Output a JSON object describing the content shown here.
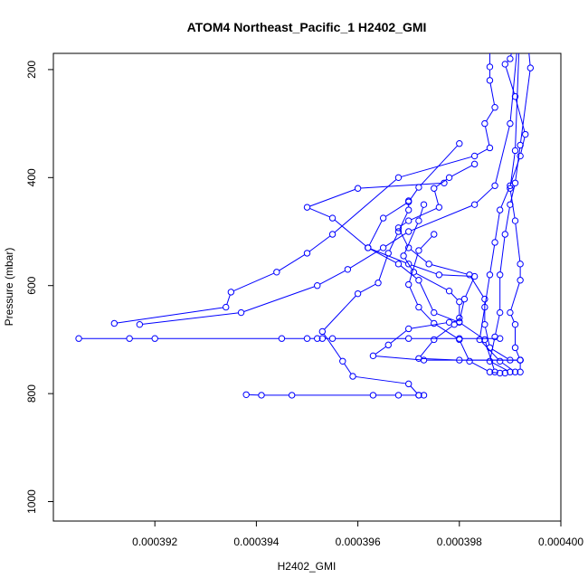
{
  "chart_data": {
    "type": "line",
    "title": "ATOM4 Northeast_Pacific_1 H2402_GMI",
    "xlabel": "H2402_GMI",
    "ylabel": "Pressure (mbar)",
    "xlim": [
      0.00039,
      0.0004
    ],
    "ylim": [
      1036,
      170
    ],
    "y_axis_reversed": true,
    "x_ticks": [
      "0.000392",
      "0.000394",
      "0.000396",
      "0.000398",
      "0.000400"
    ],
    "y_ticks": [
      "200",
      "400",
      "600",
      "800",
      "1000"
    ],
    "x_tick_values": [
      0.000392,
      0.000394,
      0.000396,
      0.000398,
      0.0004
    ],
    "y_tick_values": [
      200,
      400,
      600,
      800,
      1000
    ],
    "grid": false,
    "color": "#0000ff",
    "marker": "open-circle",
    "series": [
      {
        "name": "",
        "points": [
          [
            0.0003992,
            100
          ],
          [
            0.000399,
            180
          ],
          [
            0.0003989,
            190
          ],
          [
            0.0003991,
            250
          ],
          [
            0.0003993,
            320
          ],
          [
            0.0003992,
            360
          ],
          [
            0.000399,
            415
          ],
          [
            0.0003988,
            460
          ],
          [
            0.0003987,
            520
          ],
          [
            0.0003986,
            580
          ],
          [
            0.0003985,
            640
          ],
          [
            0.0003984,
            700
          ],
          [
            0.0003988,
            740
          ],
          [
            0.0003991,
            760
          ]
        ]
      },
      {
        "name": "",
        "points": [
          [
            0.0003986,
            100
          ],
          [
            0.0003986,
            195
          ],
          [
            0.0003986,
            220
          ],
          [
            0.0003987,
            270
          ],
          [
            0.0003985,
            300
          ],
          [
            0.0003986,
            345
          ],
          [
            0.0003983,
            360
          ],
          [
            0.0003968,
            400
          ],
          [
            0.0003955,
            505
          ],
          [
            0.000395,
            540
          ],
          [
            0.0003944,
            575
          ],
          [
            0.0003935,
            612
          ],
          [
            0.0003934,
            640
          ],
          [
            0.0003912,
            670
          ]
        ]
      },
      {
        "name": "",
        "points": [
          [
            0.0003993,
            100
          ],
          [
            0.0003994,
            197
          ],
          [
            0.0003992,
            340
          ],
          [
            0.0003991,
            410
          ],
          [
            0.000399,
            450
          ],
          [
            0.0003989,
            505
          ],
          [
            0.0003988,
            580
          ],
          [
            0.0003988,
            650
          ],
          [
            0.0003987,
            695
          ],
          [
            0.0003986,
            740
          ],
          [
            0.000399,
            760
          ]
        ]
      },
      {
        "name": "",
        "points": [
          [
            0.0003992,
            100
          ],
          [
            0.000399,
            300
          ],
          [
            0.0003987,
            415
          ],
          [
            0.0003983,
            450
          ],
          [
            0.000397,
            500
          ],
          [
            0.0003965,
            530
          ],
          [
            0.0003958,
            570
          ],
          [
            0.0003952,
            600
          ],
          [
            0.0003937,
            650
          ],
          [
            0.0003917,
            672
          ]
        ]
      },
      {
        "name": "",
        "points": [
          [
            0.0003905,
            698
          ],
          [
            0.0003915,
            698
          ],
          [
            0.000392,
            698
          ],
          [
            0.0003945,
            698
          ],
          [
            0.000395,
            698
          ],
          [
            0.0003952,
            698
          ],
          [
            0.0003953,
            698
          ],
          [
            0.0003955,
            698
          ],
          [
            0.000397,
            698
          ],
          [
            0.000398,
            698
          ],
          [
            0.0003988,
            698
          ]
        ]
      },
      {
        "name": "",
        "points": [
          [
            0.0003938,
            802
          ],
          [
            0.0003941,
            803
          ],
          [
            0.0003947,
            803
          ],
          [
            0.0003963,
            803
          ],
          [
            0.0003968,
            803
          ],
          [
            0.0003972,
            803
          ],
          [
            0.0003973,
            803
          ]
        ]
      },
      {
        "name": "",
        "points": [
          [
            0.000397,
            443
          ],
          [
            0.000397,
            460
          ],
          [
            0.0003968,
            500
          ],
          [
            0.0003966,
            540
          ],
          [
            0.0003964,
            595
          ],
          [
            0.000396,
            615
          ],
          [
            0.0003953,
            685
          ],
          [
            0.0003957,
            740
          ],
          [
            0.0003959,
            768
          ],
          [
            0.000397,
            782
          ],
          [
            0.0003972,
            803
          ]
        ]
      },
      {
        "name": "",
        "points": [
          [
            0.000398,
            337
          ],
          [
            0.0003972,
            418
          ],
          [
            0.000397,
            445
          ],
          [
            0.0003965,
            475
          ],
          [
            0.0003962,
            530
          ],
          [
            0.0003968,
            560
          ],
          [
            0.0003972,
            590
          ],
          [
            0.0003975,
            650
          ],
          [
            0.000398,
            668
          ],
          [
            0.0003985,
            700
          ],
          [
            0.0003987,
            760
          ]
        ]
      },
      {
        "name": "",
        "points": [
          [
            0.0003975,
            505
          ],
          [
            0.0003972,
            535
          ],
          [
            0.000397,
            598
          ],
          [
            0.0003972,
            640
          ],
          [
            0.0003975,
            670
          ],
          [
            0.000398,
            700
          ],
          [
            0.0003982,
            740
          ],
          [
            0.0003986,
            760
          ],
          [
            0.0003988,
            762
          ],
          [
            0.0003989,
            762
          ]
        ]
      },
      {
        "name": "",
        "points": [
          [
            0.0003973,
            450
          ],
          [
            0.0003972,
            480
          ],
          [
            0.0003969,
            545
          ],
          [
            0.0003971,
            575
          ],
          [
            0.0003978,
            610
          ],
          [
            0.000398,
            630
          ],
          [
            0.000398,
            660
          ],
          [
            0.0003979,
            672
          ],
          [
            0.0003975,
            700
          ],
          [
            0.0003972,
            735
          ],
          [
            0.000398,
            738
          ],
          [
            0.0003992,
            738
          ]
        ]
      },
      {
        "name": "",
        "points": [
          [
            0.0003977,
            410
          ],
          [
            0.000396,
            420
          ],
          [
            0.000395,
            455
          ],
          [
            0.0003955,
            475
          ],
          [
            0.0003962,
            530
          ],
          [
            0.000397,
            560
          ],
          [
            0.0003976,
            580
          ],
          [
            0.0003983,
            583
          ],
          [
            0.0003981,
            625
          ],
          [
            0.000398,
            667
          ],
          [
            0.0003978,
            668
          ],
          [
            0.000397,
            680
          ],
          [
            0.0003966,
            710
          ],
          [
            0.0003963,
            730
          ],
          [
            0.0003973,
            738
          ],
          [
            0.0003992,
            738
          ]
        ]
      },
      {
        "name": "",
        "points": [
          [
            0.0003992,
            100
          ],
          [
            0.0003991,
            350
          ],
          [
            0.000399,
            420
          ],
          [
            0.0003991,
            480
          ],
          [
            0.0003992,
            560
          ],
          [
            0.0003992,
            590
          ],
          [
            0.000399,
            650
          ],
          [
            0.0003991,
            672
          ],
          [
            0.0003991,
            715
          ],
          [
            0.0003992,
            738
          ],
          [
            0.0003992,
            760
          ]
        ]
      },
      {
        "name": "",
        "points": [
          [
            0.0003983,
            375
          ],
          [
            0.0003978,
            400
          ],
          [
            0.0003975,
            420
          ],
          [
            0.0003976,
            455
          ],
          [
            0.000397,
            480
          ],
          [
            0.0003968,
            493
          ],
          [
            0.000397,
            530
          ],
          [
            0.0003974,
            560
          ],
          [
            0.0003982,
            580
          ],
          [
            0.0003985,
            625
          ],
          [
            0.0003985,
            672
          ],
          [
            0.0003986,
            715
          ],
          [
            0.000399,
            738
          ],
          [
            0.0003992,
            738
          ]
        ]
      }
    ]
  }
}
